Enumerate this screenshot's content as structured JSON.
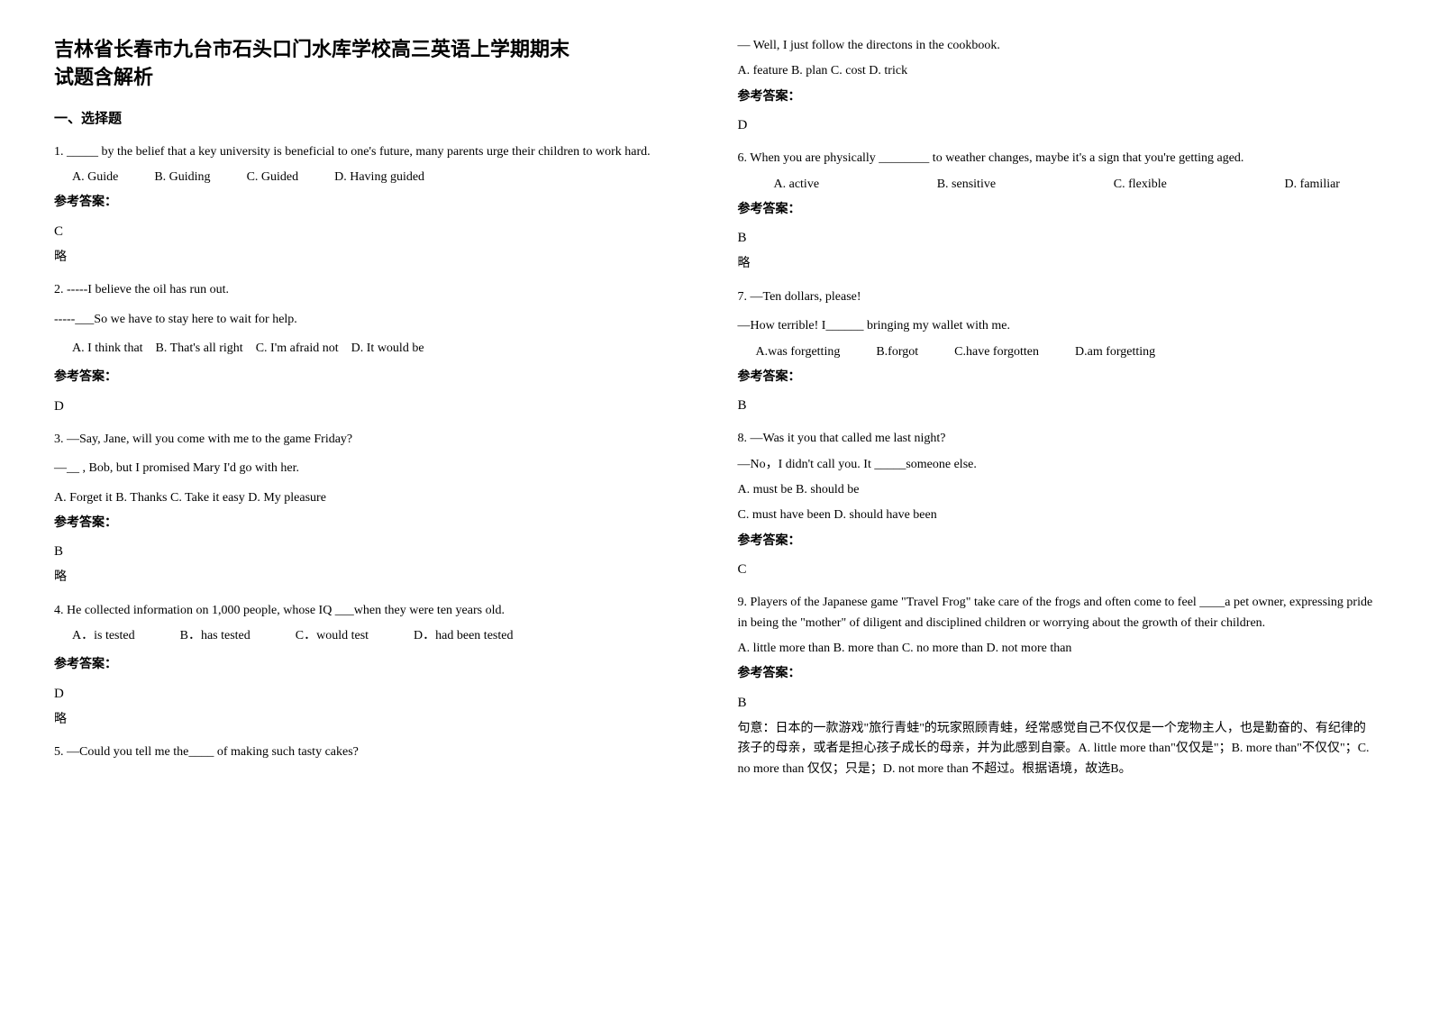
{
  "document_title_line1": "吉林省长春市九台市石头口门水库学校高三英语上学期期末",
  "document_title_line2": "试题含解析",
  "section_header": "一、选择题",
  "answer_label": "参考答案：",
  "omit_label": "略",
  "q1": {
    "text": "1. _____ by the belief that a key university is beneficial to one's future, many parents urge their children to work hard.",
    "opt_a": "A. Guide",
    "opt_b": "B. Guiding",
    "opt_c": "C. Guided",
    "opt_d": "D. Having guided",
    "answer": "C"
  },
  "q2": {
    "line1": "2. -----I believe the oil has run out.",
    "line2": "-----___So we have to stay here to wait for help.",
    "opt_a": "A. I think that",
    "opt_b": "B. That's all right",
    "opt_c": "C. I'm afraid not",
    "opt_d": "D. It would be",
    "answer": "D"
  },
  "q3": {
    "line1": "3. —Say, Jane, will you come with me to the game Friday?",
    "line2": "—__ , Bob, but I promised Mary I'd go with her.",
    "options": "A. Forget it   B. Thanks   C. Take it easy   D. My pleasure",
    "answer": "B"
  },
  "q4": {
    "text": "4. He collected information on 1,000 people, whose IQ ___when they were ten years old.",
    "opt_a": "A．is tested",
    "opt_b": "B．has tested",
    "opt_c": "C．would test",
    "opt_d": "D．had been tested",
    "answer": "D"
  },
  "q5": {
    "line1": "5. —Could you tell me the____ of making such tasty cakes?",
    "line2": "— Well, I just follow the directons in the cookbook.",
    "options": "A. feature   B. plan   C. cost   D. trick",
    "answer": "D"
  },
  "q6": {
    "text": "6. When you are physically ________ to weather changes, maybe it's a sign that you're getting aged.",
    "opt_a": "A. active",
    "opt_b": "B. sensitive",
    "opt_c": "C. flexible",
    "opt_d": "D. familiar",
    "answer": "B"
  },
  "q7": {
    "line1": "7. —Ten dollars, please!",
    "line2": "—How terrible! I______ bringing my wallet with me.",
    "opt_a": "A.was forgetting",
    "opt_b": "B.forgot",
    "opt_c": "C.have forgotten",
    "opt_d": "D.am forgetting",
    "answer": "B"
  },
  "q8": {
    "line1": "8. —Was it you that called me last night?",
    "line2": "—No，I didn't call you. It _____someone else.",
    "opt_ab": "A. must be      B. should be",
    "opt_cd": "C.      must have been D. should have been",
    "answer": "C"
  },
  "q9": {
    "text": "9. Players of the Japanese game \"Travel Frog\" take care of the frogs and often come to feel ____a pet owner, expressing pride in being the \"mother\" of diligent and disciplined children or worrying about the growth of their children.",
    "options": "A. little more than   B. more than   C. no more than   D. not more than",
    "answer": "B",
    "explanation": "句意：日本的一款游戏\"旅行青蛙\"的玩家照顾青蛙，经常感觉自己不仅仅是一个宠物主人，也是勤奋的、有纪律的孩子的母亲，或者是担心孩子成长的母亲，并为此感到自豪。A. little more than\"仅仅是\"；B. more than\"不仅仅\"；C. no more than 仅仅；只是；D. not more than 不超过。根据语境，故选B。"
  }
}
